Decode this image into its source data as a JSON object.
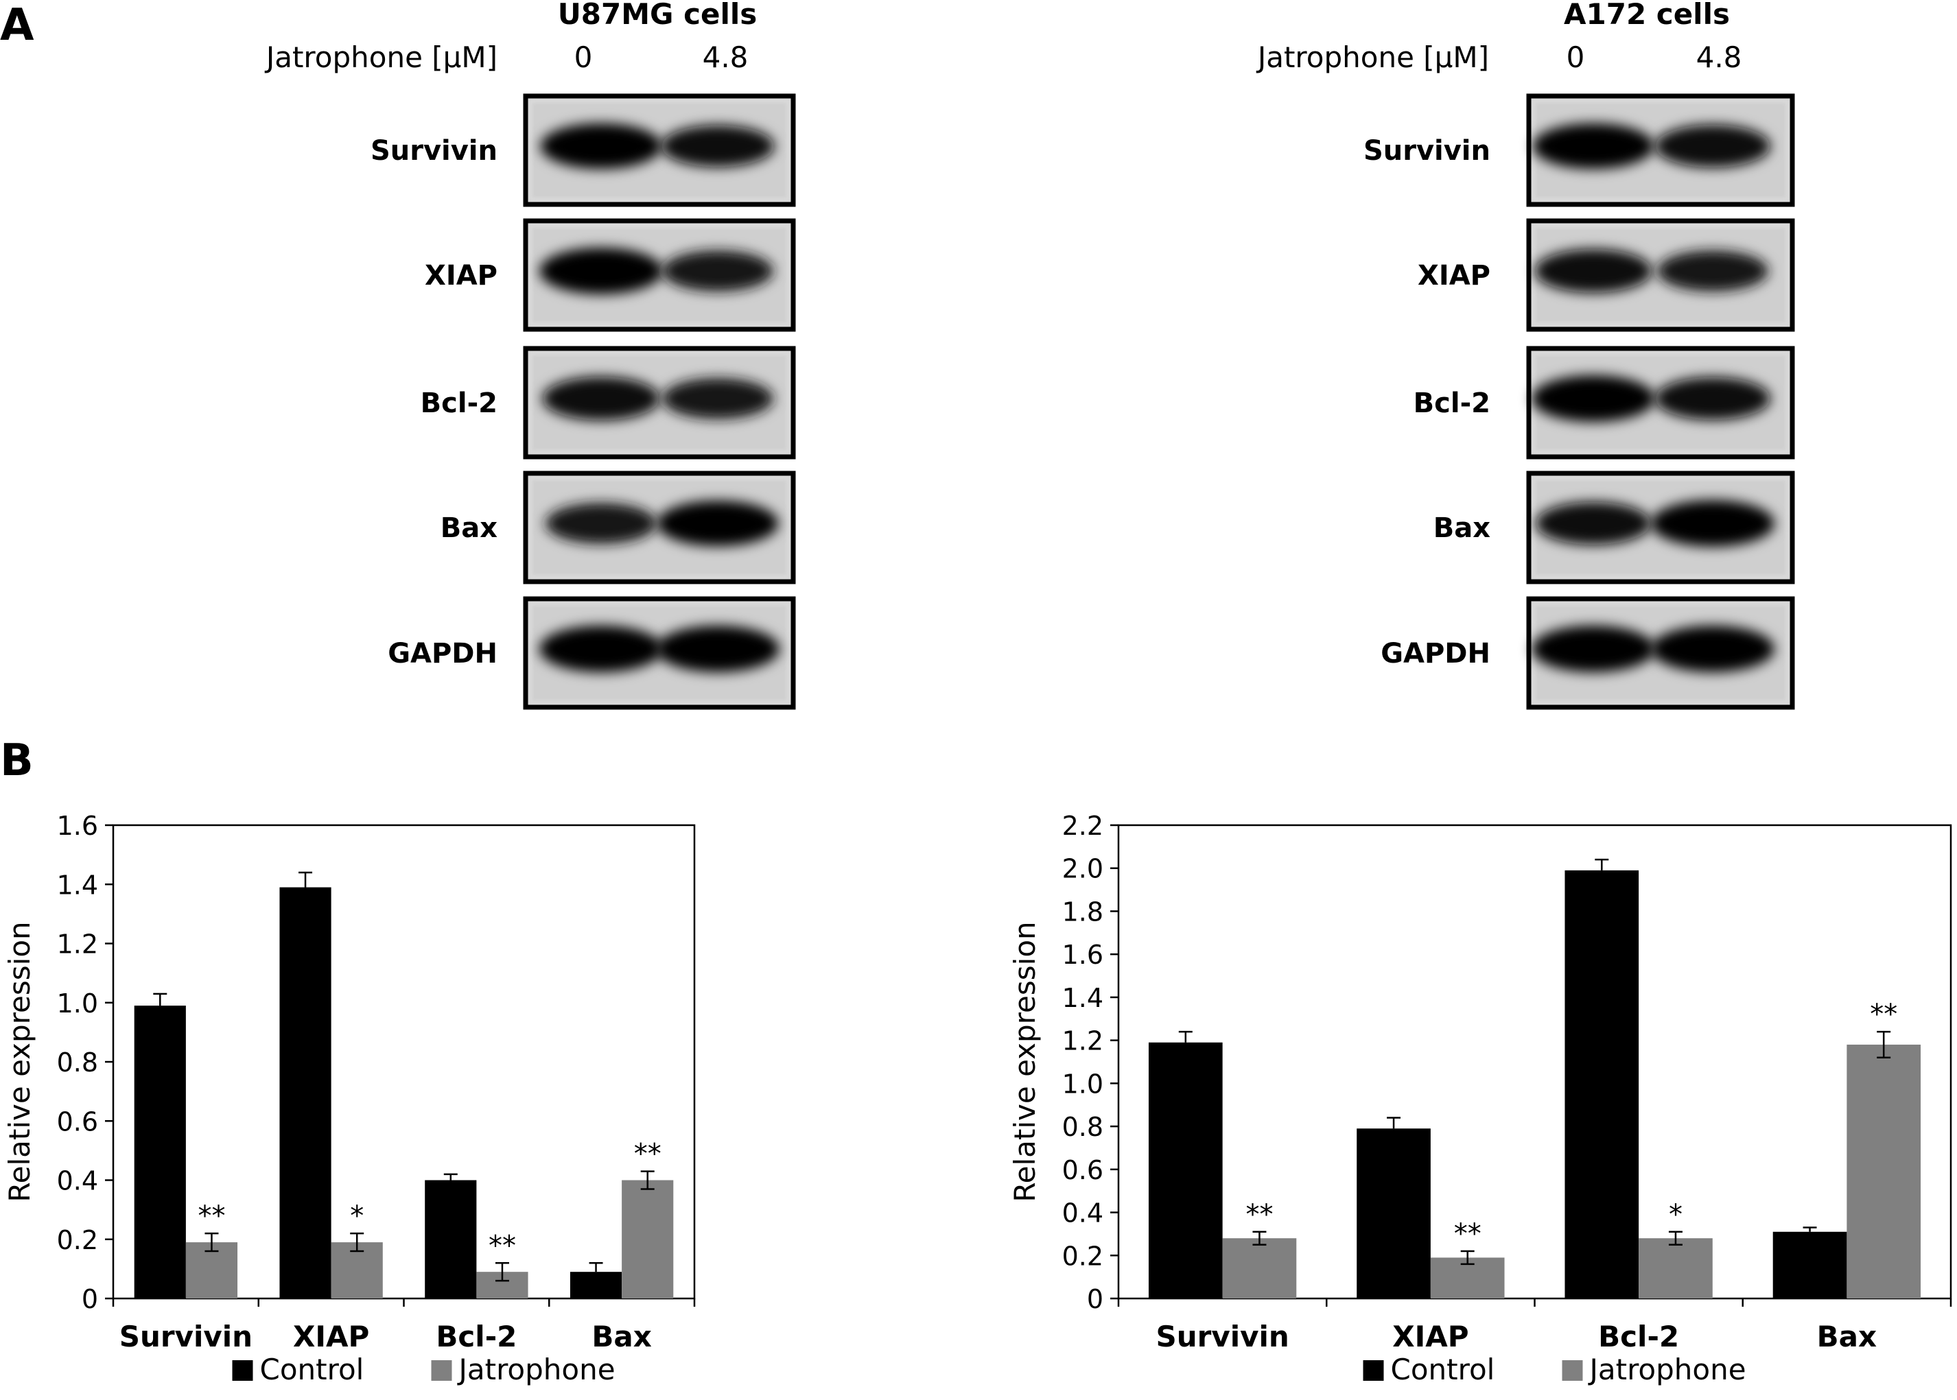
{
  "panel_a": {
    "letter": "A",
    "blots": [
      {
        "title": "U87MG cells",
        "treatment_label": "Jatrophone [μM]",
        "doses": [
          "0",
          "4.8"
        ],
        "proteins": [
          {
            "name": "Survivin",
            "band_intensity": [
              0.95,
              0.75
            ]
          },
          {
            "name": "XIAP",
            "band_intensity": [
              1.0,
              0.7
            ]
          },
          {
            "name": "Bcl-2",
            "band_intensity": [
              0.85,
              0.7
            ]
          },
          {
            "name": "Bax",
            "band_intensity": [
              0.7,
              0.95
            ]
          },
          {
            "name": "GAPDH",
            "band_intensity": [
              1.0,
              1.0
            ]
          }
        ]
      },
      {
        "title": "A172 cells",
        "treatment_label": "Jatrophone [μM]",
        "doses": [
          "0",
          "4.8"
        ],
        "proteins": [
          {
            "name": "Survivin",
            "band_intensity": [
              0.95,
              0.8
            ]
          },
          {
            "name": "XIAP",
            "band_intensity": [
              0.85,
              0.7
            ]
          },
          {
            "name": "Bcl-2",
            "band_intensity": [
              1.0,
              0.8
            ]
          },
          {
            "name": "Bax",
            "band_intensity": [
              0.8,
              1.0
            ]
          },
          {
            "name": "GAPDH",
            "band_intensity": [
              1.0,
              1.0
            ]
          }
        ]
      }
    ]
  },
  "panel_b": {
    "letter": "B"
  },
  "colors": {
    "control": "#000000",
    "jatrophone": "#808080",
    "axis": "#000000"
  },
  "chart_data": [
    {
      "type": "bar",
      "title": "",
      "xlabel": "",
      "ylabel": "Relative expression",
      "ylim": [
        0,
        1.6
      ],
      "yticks": [
        "0",
        "0.2",
        "0.4",
        "0.6",
        "0.8",
        "1.0",
        "1.2",
        "1.4",
        "1.6"
      ],
      "categories": [
        "Survivin",
        "XIAP",
        "Bcl-2",
        "Bax"
      ],
      "legend_position": "bottom",
      "grid": false,
      "series": [
        {
          "name": "Control",
          "values": [
            0.99,
            1.39,
            0.4,
            0.09
          ],
          "errors": [
            0.04,
            0.05,
            0.02,
            0.03
          ],
          "significance": [
            "",
            "",
            "",
            ""
          ]
        },
        {
          "name": "Jatrophone",
          "values": [
            0.19,
            0.19,
            0.09,
            0.4
          ],
          "errors": [
            0.03,
            0.03,
            0.03,
            0.03
          ],
          "significance": [
            "**",
            "*",
            "**",
            "**"
          ]
        }
      ]
    },
    {
      "type": "bar",
      "title": "",
      "xlabel": "",
      "ylabel": "Relative expression",
      "ylim": [
        0,
        2.2
      ],
      "yticks": [
        "0",
        "0.2",
        "0.4",
        "0.6",
        "0.8",
        "1.0",
        "1.2",
        "1.4",
        "1.6",
        "1.8",
        "2.0",
        "2.2"
      ],
      "categories": [
        "Survivin",
        "XIAP",
        "Bcl-2",
        "Bax"
      ],
      "legend_position": "bottom",
      "grid": false,
      "series": [
        {
          "name": "Control",
          "values": [
            1.19,
            0.79,
            1.99,
            0.31
          ],
          "errors": [
            0.05,
            0.05,
            0.05,
            0.02
          ],
          "significance": [
            "",
            "",
            "",
            ""
          ]
        },
        {
          "name": "Jatrophone",
          "values": [
            0.28,
            0.19,
            0.28,
            1.18
          ],
          "errors": [
            0.03,
            0.03,
            0.03,
            0.06
          ],
          "significance": [
            "**",
            "**",
            "*",
            "**"
          ]
        }
      ]
    }
  ]
}
